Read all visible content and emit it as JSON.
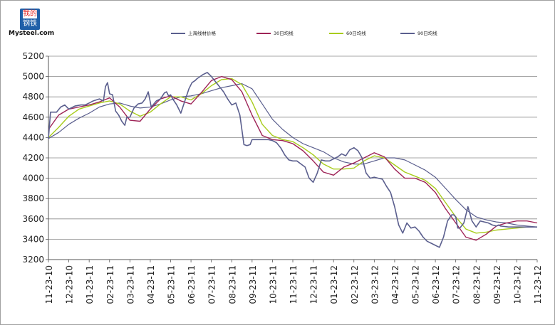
{
  "logo": {
    "chars": [
      "我的",
      "钢铁"
    ],
    "text": "Mysteel.com"
  },
  "chart_data": {
    "type": "line",
    "title": "",
    "xlabel": "",
    "ylabel": "",
    "ylim": [
      3200,
      5200
    ],
    "yticks": [
      3200,
      3400,
      3600,
      3800,
      4000,
      4200,
      4400,
      4600,
      4800,
      5000,
      5200
    ],
    "categories": [
      "11-23-10",
      "12-23-10",
      "01-23-11",
      "02-23-11",
      "03-23-11",
      "04-23-11",
      "05-23-11",
      "06-23-11",
      "07-23-11",
      "08-23-11",
      "09-23-11",
      "10-23-11",
      "11-23-11",
      "12-23-11",
      "01-23-12",
      "02-23-12",
      "03-23-12",
      "04-23-12",
      "05-23-12",
      "06-23-12",
      "07-23-12",
      "08-23-12",
      "09-23-12",
      "10-23-12",
      "11-23-12"
    ],
    "grid": true,
    "legend_position": "top",
    "series": [
      {
        "name": "上海线材价格",
        "color": "#5b5f8e",
        "x": [
          0,
          0.1,
          0.4,
          0.6,
          0.8,
          1.0,
          1.3,
          1.6,
          1.8,
          2.0,
          2.2,
          2.5,
          2.7,
          2.8,
          2.9,
          3.0,
          3.15,
          3.3,
          3.45,
          3.6,
          3.75,
          3.85,
          4.0,
          4.2,
          4.4,
          4.6,
          4.75,
          4.9,
          5.05,
          5.3,
          5.5,
          5.7,
          5.8,
          5.9,
          6.0,
          6.1,
          6.3,
          6.5,
          6.7,
          6.9,
          7.05,
          7.2,
          7.3,
          7.45,
          7.6,
          7.8,
          8.0,
          8.2,
          8.4,
          8.6,
          8.8,
          9.0,
          9.2,
          9.4,
          9.6,
          9.75,
          9.9,
          10.0,
          10.2,
          10.4,
          10.6,
          10.8,
          11.0,
          11.2,
          11.4,
          11.6,
          11.8,
          12.0,
          12.2,
          12.4,
          12.6,
          12.8,
          13.0,
          13.2,
          13.4,
          13.6,
          13.8,
          14.0,
          14.2,
          14.4,
          14.6,
          14.8,
          15.0,
          15.2,
          15.4,
          15.6,
          15.8,
          16.0,
          16.2,
          16.4,
          16.6,
          16.8,
          17.0,
          17.2,
          17.4,
          17.6,
          17.8,
          18.0,
          18.2,
          18.4,
          18.6,
          18.8,
          19.0,
          19.2,
          19.4,
          19.6,
          19.8,
          19.9,
          20.0,
          20.1,
          20.2,
          20.4,
          20.6,
          20.8,
          21.0,
          21.2,
          21.4,
          21.6,
          21.8,
          22.0,
          22.1,
          22.2,
          22.4,
          22.6,
          22.8,
          23.0,
          23.2,
          23.4,
          23.6,
          23.8,
          24.0
        ],
        "values": [
          4390,
          4650,
          4650,
          4700,
          4720,
          4680,
          4710,
          4720,
          4720,
          4740,
          4760,
          4780,
          4760,
          4900,
          4940,
          4830,
          4820,
          4660,
          4620,
          4560,
          4520,
          4600,
          4600,
          4690,
          4730,
          4740,
          4780,
          4850,
          4700,
          4760,
          4780,
          4840,
          4850,
          4810,
          4820,
          4780,
          4720,
          4640,
          4760,
          4880,
          4940,
          4960,
          4980,
          5000,
          5020,
          5040,
          5000,
          4950,
          4900,
          4850,
          4780,
          4720,
          4740,
          4620,
          4330,
          4320,
          4330,
          4380,
          4380,
          4380,
          4380,
          4380,
          4370,
          4350,
          4300,
          4230,
          4180,
          4170,
          4170,
          4140,
          4110,
          4000,
          3960,
          4050,
          4180,
          4170,
          4170,
          4190,
          4210,
          4240,
          4220,
          4280,
          4300,
          4270,
          4200,
          4050,
          4000,
          4010,
          4000,
          3990,
          3920,
          3860,
          3720,
          3540,
          3460,
          3560,
          3510,
          3520,
          3480,
          3420,
          3380,
          3360,
          3340,
          3320,
          3420,
          3580,
          3640,
          3640,
          3620,
          3510,
          3510,
          3560,
          3720,
          3580,
          3520,
          3580,
          3570,
          3560,
          3540,
          3530,
          3540,
          3530,
          3525,
          3520,
          3520,
          3520,
          3520,
          3520,
          3520,
          3520,
          3520
        ],
        "width": 1.6
      },
      {
        "name": "30日均线",
        "color": "#9e2457",
        "x": [
          0,
          0.5,
          1.0,
          1.5,
          2.0,
          2.5,
          3.0,
          3.5,
          4.0,
          4.5,
          5.0,
          5.5,
          6.0,
          6.5,
          7.0,
          7.5,
          8.0,
          8.5,
          9.0,
          9.5,
          10.0,
          10.5,
          11.0,
          11.5,
          12.0,
          12.5,
          13.0,
          13.5,
          14.0,
          14.5,
          15.0,
          15.5,
          16.0,
          16.5,
          17.0,
          17.5,
          18.0,
          18.5,
          19.0,
          19.5,
          20.0,
          20.5,
          21.0,
          21.5,
          22.0,
          22.5,
          23.0,
          23.5,
          24.0
        ],
        "values": [
          4480,
          4620,
          4680,
          4700,
          4720,
          4750,
          4790,
          4700,
          4570,
          4560,
          4680,
          4780,
          4810,
          4760,
          4730,
          4840,
          4960,
          5000,
          4970,
          4850,
          4620,
          4420,
          4380,
          4370,
          4340,
          4270,
          4170,
          4060,
          4030,
          4110,
          4150,
          4200,
          4250,
          4210,
          4090,
          4000,
          4000,
          3960,
          3860,
          3700,
          3560,
          3420,
          3390,
          3450,
          3530,
          3560,
          3580,
          3580,
          3560
        ],
        "width": 1.4
      },
      {
        "name": "60日均线",
        "color": "#a8cc1c",
        "x": [
          0,
          0.5,
          1.0,
          1.5,
          2.0,
          2.5,
          3.0,
          3.5,
          4.0,
          4.5,
          5.0,
          5.5,
          6.0,
          6.5,
          7.0,
          7.5,
          8.0,
          8.5,
          9.0,
          9.5,
          10.0,
          10.5,
          11.0,
          11.5,
          12.0,
          12.5,
          13.0,
          13.5,
          14.0,
          14.5,
          15.0,
          15.5,
          16.0,
          16.5,
          17.0,
          17.5,
          18.0,
          18.5,
          19.0,
          19.5,
          20.0,
          20.5,
          21.0,
          21.5,
          22.0,
          22.5,
          23.0,
          23.5,
          24.0
        ],
        "values": [
          4400,
          4500,
          4610,
          4680,
          4710,
          4740,
          4760,
          4730,
          4660,
          4610,
          4650,
          4730,
          4800,
          4800,
          4770,
          4830,
          4910,
          4970,
          4980,
          4920,
          4750,
          4530,
          4420,
          4380,
          4360,
          4300,
          4230,
          4140,
          4090,
          4090,
          4100,
          4170,
          4220,
          4200,
          4130,
          4060,
          4020,
          3980,
          3900,
          3760,
          3620,
          3500,
          3460,
          3470,
          3490,
          3500,
          3510,
          3520,
          3520
        ],
        "width": 1.4
      },
      {
        "name": "90日均线",
        "color": "#5b5f8e",
        "x": [
          0,
          0.5,
          1.0,
          1.5,
          2.0,
          2.5,
          3.0,
          3.5,
          4.0,
          4.5,
          5.0,
          5.5,
          6.0,
          6.5,
          7.0,
          7.5,
          8.0,
          8.5,
          9.0,
          9.5,
          10.0,
          10.5,
          11.0,
          11.5,
          12.0,
          12.5,
          13.0,
          13.5,
          14.0,
          14.5,
          15.0,
          15.5,
          16.0,
          16.5,
          17.0,
          17.5,
          18.0,
          18.5,
          19.0,
          19.5,
          20.0,
          20.5,
          21.0,
          21.5,
          22.0,
          22.5,
          23.0,
          23.5,
          24.0
        ],
        "values": [
          4390,
          4450,
          4530,
          4590,
          4640,
          4700,
          4730,
          4740,
          4710,
          4690,
          4700,
          4730,
          4770,
          4800,
          4810,
          4830,
          4860,
          4890,
          4910,
          4930,
          4880,
          4730,
          4580,
          4480,
          4400,
          4340,
          4300,
          4260,
          4200,
          4160,
          4140,
          4140,
          4170,
          4200,
          4200,
          4180,
          4130,
          4080,
          4010,
          3900,
          3790,
          3690,
          3620,
          3590,
          3570,
          3560,
          3540,
          3530,
          3520
        ],
        "width": 1.2
      }
    ]
  }
}
